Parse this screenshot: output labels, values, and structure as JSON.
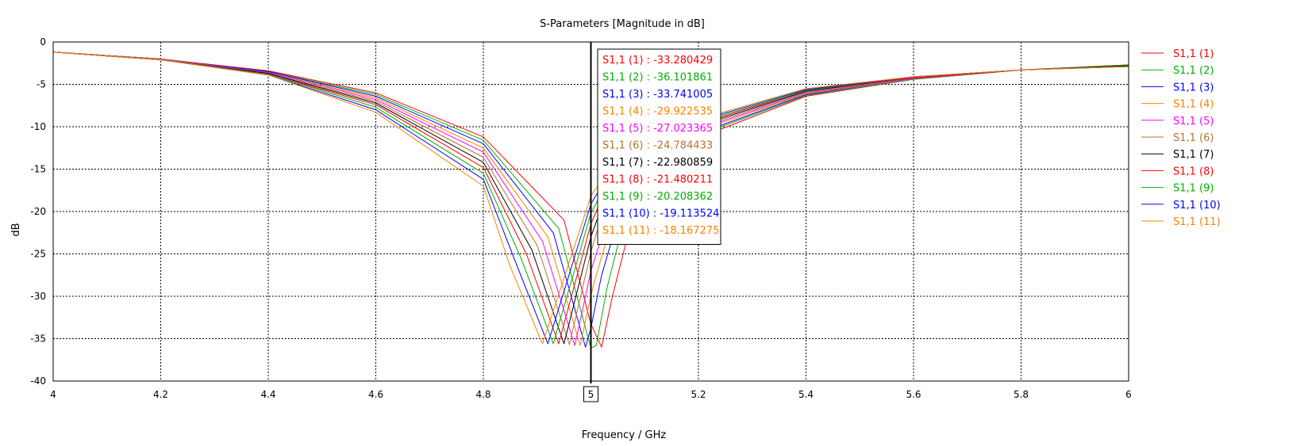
{
  "chart_data": {
    "type": "line",
    "title": "S-Parameters [Magnitude in dB]",
    "xlabel": "Frequency / GHz",
    "ylabel": "dB",
    "xlim": [
      4,
      6
    ],
    "ylim": [
      -40,
      0
    ],
    "x_ticks": [
      "4",
      "4.2",
      "4.4",
      "4.6",
      "4.8",
      "5",
      "5.2",
      "5.4",
      "5.6",
      "5.8",
      "6"
    ],
    "x_tick_values": [
      4,
      4.2,
      4.4,
      4.6,
      4.8,
      5,
      5.2,
      5.4,
      5.6,
      5.8,
      6
    ],
    "y_ticks": [
      "0",
      "-5",
      "-10",
      "-15",
      "-20",
      "-25",
      "-30",
      "-35",
      "-40"
    ],
    "y_tick_values": [
      0,
      -5,
      -10,
      -15,
      -20,
      -25,
      -30,
      -35,
      -40
    ],
    "grid": true,
    "legend_position": "right",
    "marker": {
      "x": 5,
      "label": "5"
    },
    "series": [
      {
        "name": "S1,1 (1)",
        "color": "#ff0000",
        "x": [
          4.0,
          4.2,
          4.4,
          4.6,
          4.8,
          4.95,
          5.0,
          5.02,
          5.04,
          5.07,
          5.1,
          5.2,
          5.4,
          5.6,
          5.8,
          6.0
        ],
        "y": [
          -1.2,
          -2.0,
          -3.4,
          -6.0,
          -11.2,
          -21.0,
          -33.28,
          -36.0,
          -30.0,
          -22.5,
          -17.8,
          -11.3,
          -6.4,
          -4.4,
          -3.3,
          -2.7
        ],
        "readout": "S1,1 (1) : -33.280429"
      },
      {
        "name": "S1,1 (2)",
        "color": "#00b000",
        "x": [
          4.0,
          4.2,
          4.4,
          4.6,
          4.8,
          4.94,
          5.0,
          5.01,
          5.03,
          5.06,
          5.1,
          5.2,
          5.4,
          5.6,
          5.8,
          6.0
        ],
        "y": [
          -1.2,
          -2.0,
          -3.5,
          -6.2,
          -11.6,
          -22.0,
          -36.1,
          -35.8,
          -29.0,
          -21.5,
          -16.8,
          -11.0,
          -6.3,
          -4.4,
          -3.3,
          -2.7
        ],
        "readout": "S1,1 (2) : -36.101861"
      },
      {
        "name": "S1,1 (3)",
        "color": "#0000ff",
        "x": [
          4.0,
          4.2,
          4.4,
          4.6,
          4.8,
          4.93,
          4.99,
          5.0,
          5.02,
          5.05,
          5.1,
          5.2,
          5.4,
          5.6,
          5.8,
          6.0
        ],
        "y": [
          -1.2,
          -2.0,
          -3.5,
          -6.4,
          -12.0,
          -22.5,
          -36.0,
          -33.74,
          -27.5,
          -21.0,
          -16.0,
          -10.8,
          -6.2,
          -4.3,
          -3.3,
          -2.8
        ],
        "readout": "S1,1 (3) : -33.741005"
      },
      {
        "name": "S1,1 (4)",
        "color": "#ff8000",
        "x": [
          4.0,
          4.2,
          4.4,
          4.6,
          4.8,
          4.92,
          4.98,
          5.0,
          5.01,
          5.04,
          5.1,
          5.2,
          5.4,
          5.6,
          5.8,
          6.0
        ],
        "y": [
          -1.2,
          -2.0,
          -3.6,
          -6.6,
          -12.5,
          -23.0,
          -35.8,
          -29.92,
          -27.5,
          -21.0,
          -15.3,
          -10.5,
          -6.1,
          -4.3,
          -3.3,
          -2.8
        ],
        "readout": "S1,1 (4) : -29.922535"
      },
      {
        "name": "S1,1 (5)",
        "color": "#ff00ff",
        "x": [
          4.0,
          4.2,
          4.4,
          4.6,
          4.8,
          4.91,
          4.97,
          5.0,
          5.03,
          5.1,
          5.2,
          5.4,
          5.6,
          5.8,
          6.0
        ],
        "y": [
          -1.2,
          -2.0,
          -3.6,
          -6.8,
          -13.0,
          -23.5,
          -35.8,
          -27.02,
          -21.0,
          -14.8,
          -10.3,
          -6.0,
          -4.3,
          -3.3,
          -2.8
        ],
        "readout": "S1,1 (5) : -27.023365"
      },
      {
        "name": "S1,1 (6)",
        "color": "#b87333",
        "x": [
          4.0,
          4.2,
          4.4,
          4.6,
          4.8,
          4.9,
          4.96,
          5.0,
          5.02,
          5.1,
          5.2,
          5.4,
          5.6,
          5.8,
          6.0
        ],
        "y": [
          -1.2,
          -2.0,
          -3.7,
          -7.0,
          -13.6,
          -24.0,
          -35.7,
          -24.78,
          -20.5,
          -14.3,
          -10.1,
          -5.9,
          -4.2,
          -3.3,
          -2.8
        ],
        "readout": "S1,1 (6) : -24.784433"
      },
      {
        "name": "S1,1 (7)",
        "color": "#000000",
        "x": [
          4.0,
          4.2,
          4.4,
          4.6,
          4.8,
          4.89,
          4.95,
          5.0,
          5.02,
          5.1,
          5.2,
          5.4,
          5.6,
          5.8,
          6.0
        ],
        "y": [
          -1.2,
          -2.1,
          -3.7,
          -7.2,
          -14.2,
          -24.5,
          -35.6,
          -22.98,
          -19.5,
          -13.8,
          -9.9,
          -5.8,
          -4.2,
          -3.3,
          -2.8
        ],
        "readout": "S1,1 (7) : -22.980859"
      },
      {
        "name": "S1,1 (8)",
        "color": "#ff0000",
        "x": [
          4.0,
          4.2,
          4.4,
          4.6,
          4.8,
          4.88,
          4.94,
          5.0,
          5.02,
          5.1,
          5.2,
          5.4,
          5.6,
          5.8,
          6.0
        ],
        "y": [
          -1.2,
          -2.1,
          -3.8,
          -7.4,
          -14.8,
          -25.0,
          -35.6,
          -21.48,
          -18.5,
          -13.4,
          -9.7,
          -5.7,
          -4.2,
          -3.3,
          -2.9
        ],
        "readout": "S1,1 (8) : -21.480211"
      },
      {
        "name": "S1,1 (9)",
        "color": "#00b000",
        "x": [
          4.0,
          4.2,
          4.4,
          4.6,
          4.8,
          4.87,
          4.93,
          5.0,
          5.02,
          5.1,
          5.2,
          5.4,
          5.6,
          5.8,
          6.0
        ],
        "y": [
          -1.2,
          -2.1,
          -3.8,
          -7.7,
          -15.5,
          -25.5,
          -35.6,
          -20.21,
          -17.8,
          -13.0,
          -9.5,
          -5.7,
          -4.1,
          -3.3,
          -2.9
        ],
        "readout": "S1,1 (9) : -20.208362"
      },
      {
        "name": "S1,1 (10)",
        "color": "#0000ff",
        "x": [
          4.0,
          4.2,
          4.4,
          4.6,
          4.8,
          4.86,
          4.92,
          5.0,
          5.02,
          5.1,
          5.2,
          5.4,
          5.6,
          5.8,
          6.0
        ],
        "y": [
          -1.2,
          -2.1,
          -3.9,
          -8.0,
          -16.2,
          -26.0,
          -35.6,
          -19.11,
          -17.0,
          -12.6,
          -9.3,
          -5.6,
          -4.1,
          -3.3,
          -2.9
        ],
        "readout": "S1,1 (10) : -19.113524"
      },
      {
        "name": "S1,1 (11)",
        "color": "#ff8000",
        "x": [
          4.0,
          4.2,
          4.4,
          4.6,
          4.8,
          4.85,
          4.91,
          5.0,
          5.02,
          5.1,
          5.2,
          5.4,
          5.6,
          5.8,
          6.0
        ],
        "y": [
          -1.2,
          -2.1,
          -3.9,
          -8.3,
          -17.0,
          -26.5,
          -35.6,
          -18.17,
          -16.3,
          -12.2,
          -9.1,
          -5.5,
          -4.1,
          -3.3,
          -2.9
        ],
        "readout": "S1,1 (11) : -18.167275"
      }
    ]
  }
}
